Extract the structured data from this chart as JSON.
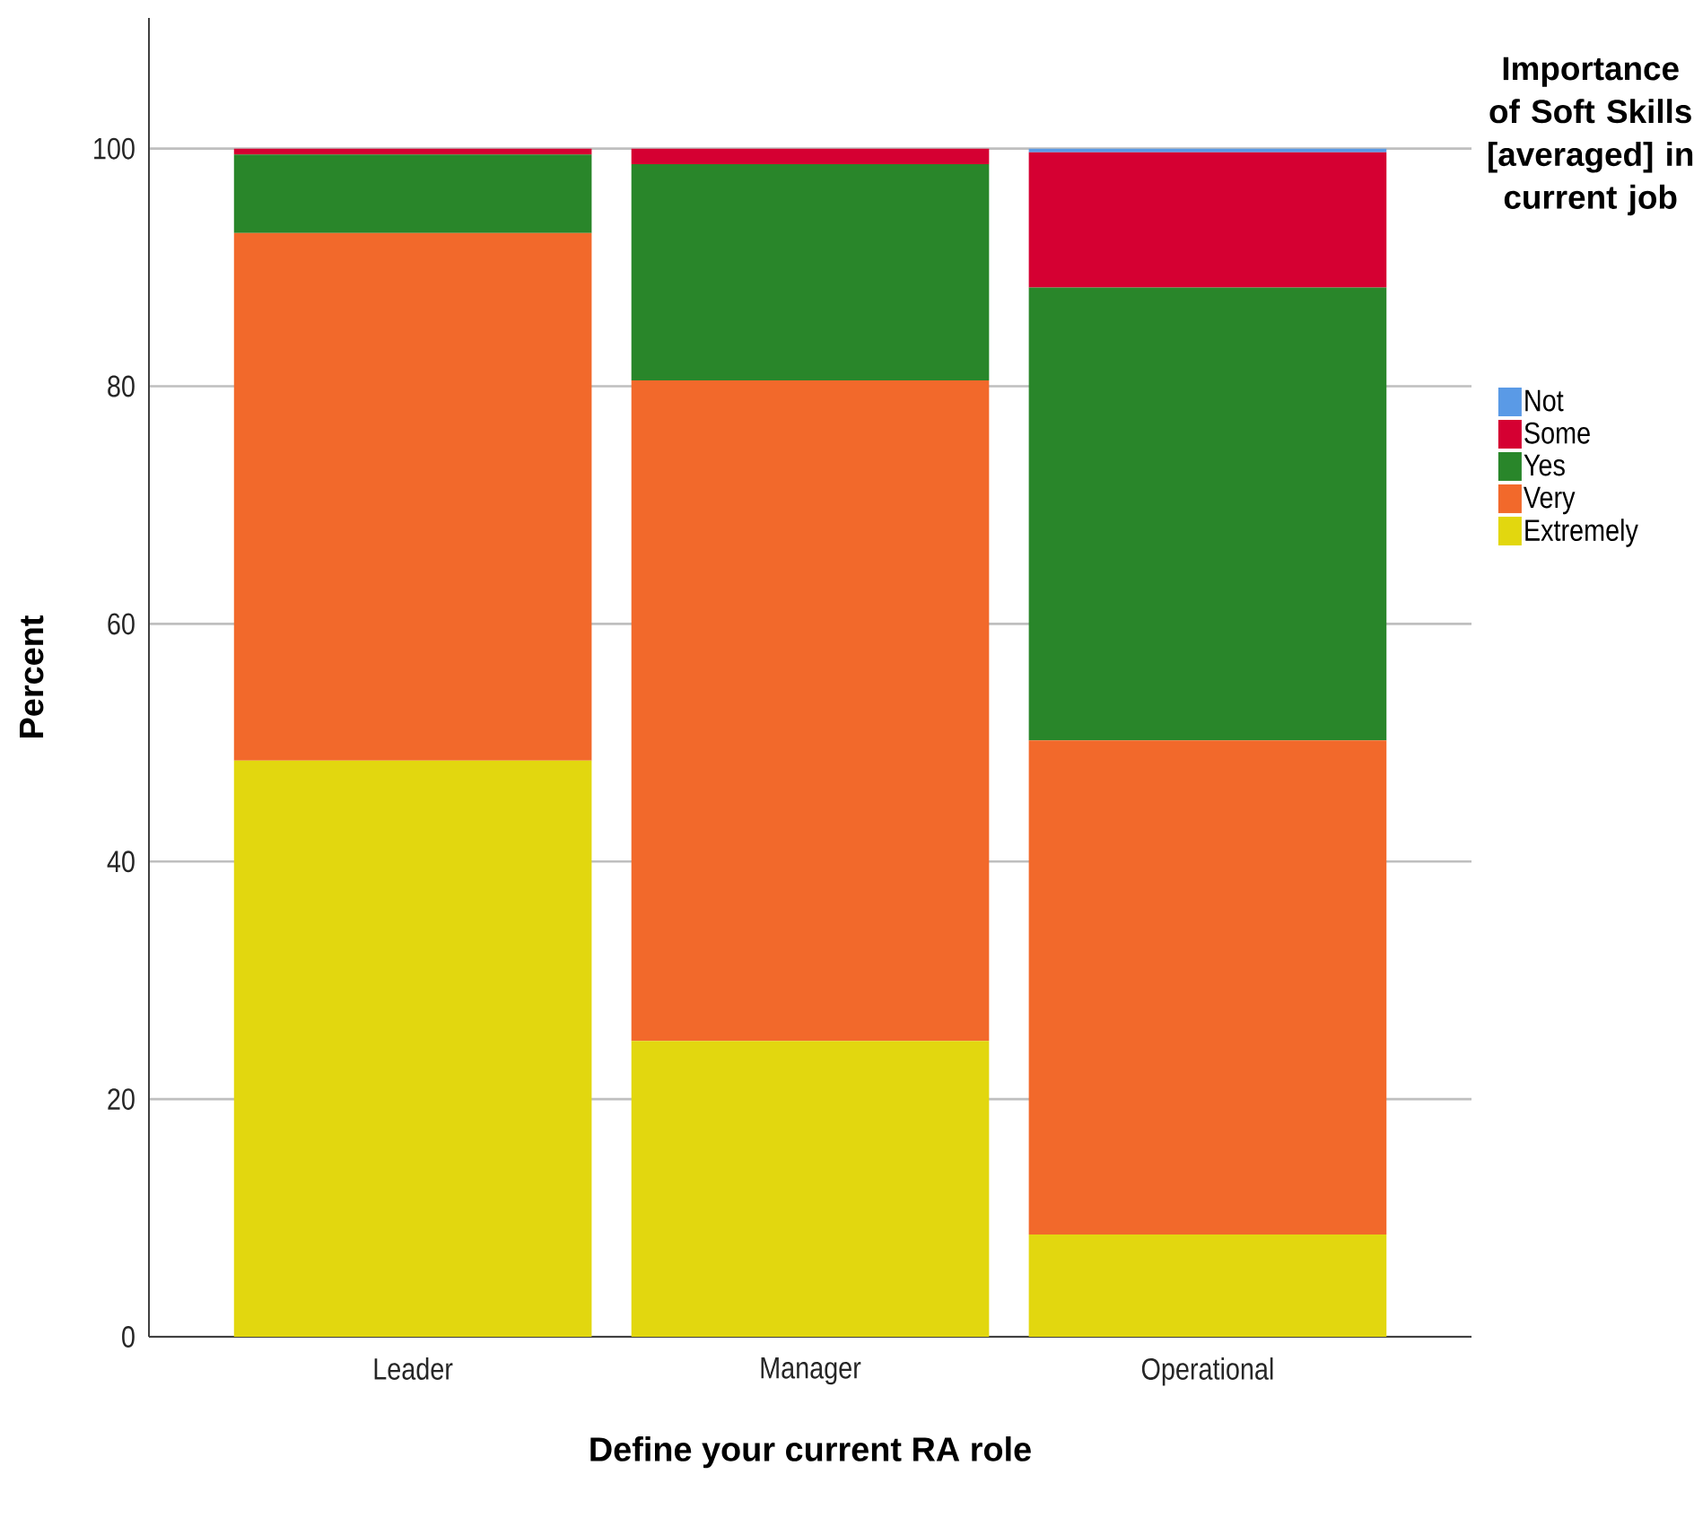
{
  "chart_data": {
    "type": "bar",
    "stacked": true,
    "xlabel": "Define your current RA role",
    "ylabel": "Percent",
    "legend_title": "Importance of Soft Skills [averaged] in current job",
    "categories": [
      "Leader",
      "Manager",
      "Operational"
    ],
    "series": [
      {
        "name": "Extremely",
        "color": "#e2d70f",
        "values": [
          48.5,
          24.9,
          8.6
        ]
      },
      {
        "name": "Very",
        "color": "#f2692b",
        "values": [
          44.4,
          55.6,
          41.6
        ]
      },
      {
        "name": "Yes",
        "color": "#29862a",
        "values": [
          6.6,
          18.2,
          38.1
        ]
      },
      {
        "name": "Some",
        "color": "#d50032",
        "values": [
          0.5,
          1.3,
          11.4
        ]
      },
      {
        "name": "Not",
        "color": "#5a9ae6",
        "values": [
          0,
          0,
          0.3
        ]
      }
    ],
    "ylim": [
      0,
      111
    ],
    "yticks": [
      0,
      20,
      40,
      60,
      80,
      100
    ],
    "grid": "y",
    "legend": "right"
  }
}
